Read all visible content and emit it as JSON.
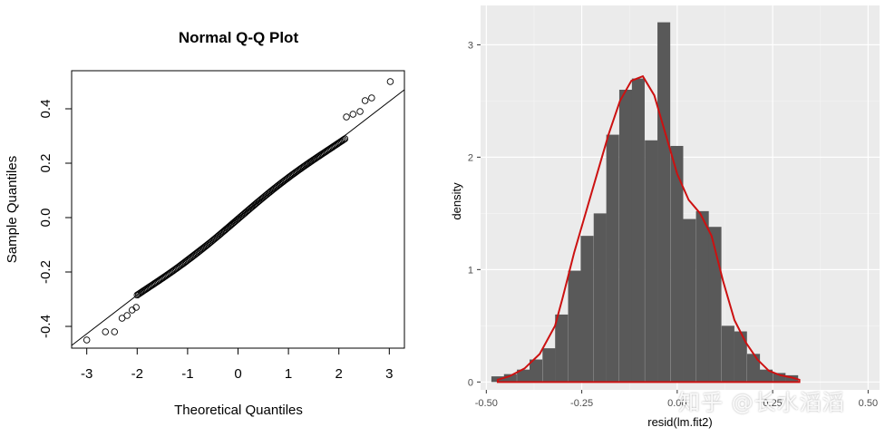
{
  "qq_chart": {
    "type": "scatter",
    "title": "Normal Q-Q Plot",
    "xlabel": "Theoretical Quantiles",
    "ylabel": "Sample Quantiles",
    "xlim": [
      -3.3,
      3.3
    ],
    "ylim": [
      -0.48,
      0.54
    ],
    "xticks": [
      "-3",
      "-2",
      "-1",
      "0",
      "1",
      "2",
      "3"
    ],
    "xtick_values": [
      -3,
      -2,
      -1,
      0,
      1,
      2,
      3
    ],
    "yticks": [
      "-0.4",
      "-0.2",
      "0.0",
      "0.2",
      "0.4"
    ],
    "ytick_values": [
      -0.4,
      -0.2,
      0.0,
      0.2,
      0.4
    ],
    "reference_line": {
      "x": [
        -3.3,
        3.3
      ],
      "y": [
        -0.47,
        0.47
      ]
    },
    "tail_points": [
      {
        "x": -3.0,
        "y": -0.45
      },
      {
        "x": -2.63,
        "y": -0.42
      },
      {
        "x": -2.45,
        "y": -0.42
      },
      {
        "x": -2.3,
        "y": -0.37
      },
      {
        "x": -2.2,
        "y": -0.36
      },
      {
        "x": -2.1,
        "y": -0.34
      },
      {
        "x": -2.02,
        "y": -0.33
      },
      {
        "x": 2.15,
        "y": 0.37
      },
      {
        "x": 2.28,
        "y": 0.38
      },
      {
        "x": 2.42,
        "y": 0.39
      },
      {
        "x": 2.65,
        "y": 0.44
      },
      {
        "x": 2.52,
        "y": 0.43
      },
      {
        "x": 3.02,
        "y": 0.5
      }
    ]
  },
  "hist_chart": {
    "type": "bar",
    "xlabel": "resid(lm.fit2)",
    "ylabel": "density",
    "xlim": [
      -0.515,
      0.53
    ],
    "ylim": [
      -0.07,
      3.35
    ],
    "xticks": [
      "-0.50",
      "-0.25",
      "0.00",
      "0.25",
      "0.50"
    ],
    "xtick_values": [
      -0.5,
      -0.25,
      0.0,
      0.25,
      0.5
    ],
    "yticks": [
      "0",
      "1",
      "2",
      "3"
    ],
    "ytick_values": [
      0,
      1,
      2,
      3
    ],
    "bin_width": 0.0335,
    "bins": [
      {
        "x": -0.47,
        "density": 0.05
      },
      {
        "x": -0.437,
        "density": 0.07
      },
      {
        "x": -0.403,
        "density": 0.11
      },
      {
        "x": -0.37,
        "density": 0.2
      },
      {
        "x": -0.336,
        "density": 0.3
      },
      {
        "x": -0.303,
        "density": 0.6
      },
      {
        "x": -0.269,
        "density": 0.99
      },
      {
        "x": -0.236,
        "density": 1.3
      },
      {
        "x": -0.202,
        "density": 1.5
      },
      {
        "x": -0.169,
        "density": 2.2
      },
      {
        "x": -0.135,
        "density": 2.6
      },
      {
        "x": -0.102,
        "density": 2.7
      },
      {
        "x": -0.068,
        "density": 2.15
      },
      {
        "x": -0.035,
        "density": 3.2
      },
      {
        "x": -0.001,
        "density": 2.1
      },
      {
        "x": 0.032,
        "density": 1.45
      },
      {
        "x": 0.066,
        "density": 1.52
      },
      {
        "x": 0.099,
        "density": 1.38
      },
      {
        "x": 0.133,
        "density": 0.5
      },
      {
        "x": 0.166,
        "density": 0.45
      },
      {
        "x": 0.2,
        "density": 0.25
      },
      {
        "x": 0.233,
        "density": 0.11
      },
      {
        "x": 0.267,
        "density": 0.08
      },
      {
        "x": 0.3,
        "density": 0.06
      }
    ],
    "density_curve": [
      [
        -0.47,
        0.02
      ],
      [
        -0.44,
        0.05
      ],
      [
        -0.4,
        0.12
      ],
      [
        -0.36,
        0.25
      ],
      [
        -0.32,
        0.5
      ],
      [
        -0.3,
        0.75
      ],
      [
        -0.27,
        1.15
      ],
      [
        -0.24,
        1.5
      ],
      [
        -0.21,
        1.85
      ],
      [
        -0.18,
        2.2
      ],
      [
        -0.15,
        2.5
      ],
      [
        -0.12,
        2.68
      ],
      [
        -0.09,
        2.72
      ],
      [
        -0.06,
        2.55
      ],
      [
        -0.03,
        2.2
      ],
      [
        0.0,
        1.85
      ],
      [
        0.03,
        1.62
      ],
      [
        0.06,
        1.5
      ],
      [
        0.09,
        1.3
      ],
      [
        0.12,
        0.9
      ],
      [
        0.15,
        0.55
      ],
      [
        0.18,
        0.35
      ],
      [
        0.21,
        0.2
      ],
      [
        0.24,
        0.1
      ],
      [
        0.27,
        0.06
      ],
      [
        0.3,
        0.04
      ],
      [
        0.32,
        0.02
      ]
    ],
    "colors": {
      "bar": "#595959",
      "curve": "#cc1111",
      "panel": "#ebebeb",
      "grid_major": "#ffffff",
      "grid_minor": "#f5f5f5",
      "axis_text": "#4d4d4d"
    }
  },
  "watermark": "知乎 @长水滔滔"
}
